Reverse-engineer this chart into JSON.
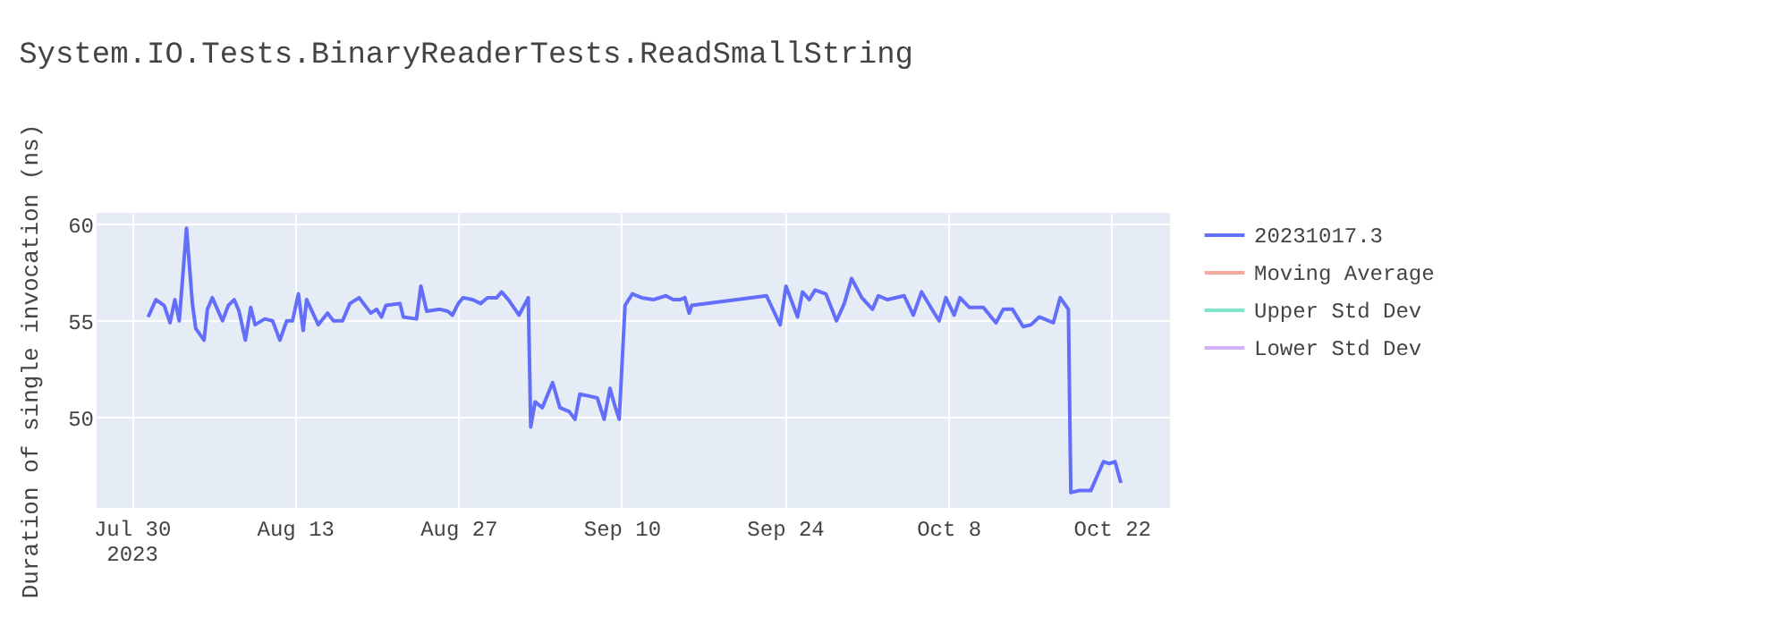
{
  "chart_data": {
    "type": "line",
    "title": "System.IO.Tests.BinaryReaderTests.ReadSmallString",
    "ylabel": "Duration of single invocation (ns)",
    "x": [
      "2023-07-31T10:00",
      "2023-08-01T02:00",
      "2023-08-01T19:00",
      "2023-08-02T07:00",
      "2023-08-02T17:00",
      "2023-08-03T02:00",
      "2023-08-03T17:00",
      "2023-08-04T05:00",
      "2023-08-04T12:00",
      "2023-08-05T05:00",
      "2023-08-05T12:00",
      "2023-08-05T22:00",
      "2023-08-06T19:00",
      "2023-08-07T07:00",
      "2023-08-07T19:00",
      "2023-08-08T05:00",
      "2023-08-08T18:00",
      "2023-08-09T05:00",
      "2023-08-09T14:00",
      "2023-08-10T10:00",
      "2023-08-11T02:00",
      "2023-08-11T17:00",
      "2023-08-12T07:00",
      "2023-08-12T19:00",
      "2023-08-13T07:00",
      "2023-08-13T17:00",
      "2023-08-14T00:00",
      "2023-08-15T00:00",
      "2023-08-15T19:00",
      "2023-08-16T07:00",
      "2023-08-17T02:00",
      "2023-08-17T17:00",
      "2023-08-18T12:00",
      "2023-08-19T12:00",
      "2023-08-20T00:00",
      "2023-08-20T10:00",
      "2023-08-20T19:00",
      "2023-08-22T00:00",
      "2023-08-22T07:00",
      "2023-08-23T10:00",
      "2023-08-23T19:00",
      "2023-08-24T07:00",
      "2023-08-25T10:00",
      "2023-08-26T02:00",
      "2023-08-26T12:00",
      "2023-08-27T00:00",
      "2023-08-27T10:00",
      "2023-08-28T05:00",
      "2023-08-28T22:00",
      "2023-08-29T12:00",
      "2023-08-30T07:00",
      "2023-08-30T17:00",
      "2023-08-31T07:00",
      "2023-09-01T05:00",
      "2023-09-02T00:00",
      "2023-09-02T05:00",
      "2023-09-02T14:00",
      "2023-09-03T05:00",
      "2023-09-04T02:00",
      "2023-09-04T17:00",
      "2023-09-05T12:00",
      "2023-09-06T00:00",
      "2023-09-06T10:00",
      "2023-09-07T05:00",
      "2023-09-07T22:00",
      "2023-09-08T12:00",
      "2023-09-09T00:00",
      "2023-09-09T10:00",
      "2023-09-09T19:00",
      "2023-09-10T07:00",
      "2023-09-10T22:00",
      "2023-09-11T17:00",
      "2023-09-12T17:00",
      "2023-09-13T19:00",
      "2023-09-14T10:00",
      "2023-09-15T00:00",
      "2023-09-15T10:00",
      "2023-09-15T19:00",
      "2023-09-16T00:00",
      "2023-09-22T10:00",
      "2023-09-23T14:00",
      "2023-09-24T02:00",
      "2023-09-25T02:00",
      "2023-09-25T12:00",
      "2023-09-26T02:00",
      "2023-09-26T14:00",
      "2023-09-27T12:00",
      "2023-09-28T10:00",
      "2023-09-29T02:00",
      "2023-09-29T17:00",
      "2023-09-30T14:00",
      "2023-10-01T12:00",
      "2023-10-02T00:00",
      "2023-10-02T19:00",
      "2023-10-04T05:00",
      "2023-10-05T00:00",
      "2023-10-05T17:00",
      "2023-10-06T12:00",
      "2023-10-07T05:00",
      "2023-10-07T19:00",
      "2023-10-08T12:00",
      "2023-10-09T00:00",
      "2023-10-09T19:00",
      "2023-10-11T00:00",
      "2023-10-12T02:00",
      "2023-10-12T17:00",
      "2023-10-13T12:00",
      "2023-10-14T10:00",
      "2023-10-15T02:00",
      "2023-10-15T19:00",
      "2023-10-17T00:00",
      "2023-10-17T14:00",
      "2023-10-18T07:00",
      "2023-10-18T12:00",
      "2023-10-19T05:00",
      "2023-10-20T05:00",
      "2023-10-21T07:00",
      "2023-10-21T19:00",
      "2023-10-22T07:00",
      "2023-10-22T19:00"
    ],
    "series": [
      {
        "name": "20231017.3",
        "color": "#636efa",
        "values": [
          55.2,
          56.1,
          55.8,
          54.9,
          56.1,
          55.0,
          59.8,
          55.9,
          54.6,
          54.0,
          55.6,
          56.2,
          55.0,
          55.8,
          56.1,
          55.5,
          54.0,
          55.7,
          54.8,
          55.1,
          55.0,
          54.0,
          55.0,
          55.0,
          56.4,
          54.5,
          56.1,
          54.8,
          55.4,
          55.0,
          55.0,
          55.9,
          56.2,
          55.4,
          55.6,
          55.2,
          55.8,
          55.9,
          55.2,
          55.1,
          56.8,
          55.5,
          55.6,
          55.5,
          55.3,
          55.9,
          56.2,
          56.1,
          55.9,
          56.2,
          56.2,
          56.5,
          56.1,
          55.3,
          56.2,
          49.5,
          50.8,
          50.5,
          51.8,
          50.5,
          50.3,
          49.9,
          51.2,
          51.1,
          51.0,
          49.9,
          51.5,
          50.6,
          49.9,
          55.8,
          56.4,
          56.2,
          56.1,
          56.3,
          56.1,
          56.1,
          56.2,
          55.4,
          55.8,
          56.3,
          54.8,
          56.8,
          55.2,
          56.5,
          56.1,
          56.6,
          56.4,
          55.0,
          55.9,
          57.2,
          56.2,
          55.6,
          56.3,
          56.1,
          56.3,
          55.3,
          56.5,
          55.7,
          55.0,
          56.2,
          55.3,
          56.2,
          55.7,
          55.7,
          54.9,
          55.6,
          55.6,
          54.7,
          54.8,
          55.2,
          54.9,
          56.2,
          55.6,
          46.1,
          46.2,
          46.2,
          47.7,
          47.6,
          47.7,
          46.6
        ]
      },
      {
        "name": "Moving Average",
        "color": "#f6aa9d",
        "values": [
          null,
          null,
          null,
          null,
          null,
          null,
          null,
          null,
          null,
          null,
          null,
          null,
          null,
          null,
          null,
          null,
          null,
          null,
          null,
          null,
          null,
          null,
          null,
          null,
          null,
          null,
          null,
          null,
          null,
          null,
          null,
          null,
          null,
          null,
          null,
          null,
          null,
          null,
          null,
          null,
          null,
          null,
          null,
          null,
          null,
          null,
          null,
          null,
          null,
          null,
          null,
          null,
          null,
          null,
          null,
          null,
          null,
          null,
          null,
          null,
          null,
          null,
          null,
          null,
          null,
          null,
          null,
          null,
          null,
          null,
          null,
          null,
          null,
          null,
          null,
          null,
          null,
          null,
          null,
          null,
          null,
          null,
          null,
          null,
          null,
          null,
          null,
          null,
          null,
          null,
          null,
          null,
          null,
          null,
          null,
          null,
          null,
          null,
          null,
          null,
          null,
          null,
          null,
          null,
          null,
          null,
          null,
          null,
          null,
          null,
          null,
          null,
          null,
          null,
          null,
          null,
          null,
          null,
          null,
          null
        ]
      },
      {
        "name": "Upper Std Dev",
        "color": "#80e6cb",
        "values": [
          null,
          null,
          null,
          null,
          null,
          null,
          null,
          null,
          null,
          null,
          null,
          null,
          null,
          null,
          null,
          null,
          null,
          null,
          null,
          null,
          null,
          null,
          null,
          null,
          null,
          null,
          null,
          null,
          null,
          null,
          null,
          null,
          null,
          null,
          null,
          null,
          null,
          null,
          null,
          null,
          null,
          null,
          null,
          null,
          null,
          null,
          null,
          null,
          null,
          null,
          null,
          null,
          null,
          null,
          null,
          null,
          null,
          null,
          null,
          null,
          null,
          null,
          null,
          null,
          null,
          null,
          null,
          null,
          null,
          null,
          null,
          null,
          null,
          null,
          null,
          null,
          null,
          null,
          null,
          null,
          null,
          null,
          null,
          null,
          null,
          null,
          null,
          null,
          null,
          null,
          null,
          null,
          null,
          null,
          null,
          null,
          null,
          null,
          null,
          null,
          null,
          null,
          null,
          null,
          null,
          null,
          null,
          null,
          null,
          null,
          null,
          null,
          null,
          null,
          null,
          null,
          null,
          null,
          null,
          null
        ]
      },
      {
        "name": "Lower Std Dev",
        "color": "#d5b1fd",
        "values": [
          null,
          null,
          null,
          null,
          null,
          null,
          null,
          null,
          null,
          null,
          null,
          null,
          null,
          null,
          null,
          null,
          null,
          null,
          null,
          null,
          null,
          null,
          null,
          null,
          null,
          null,
          null,
          null,
          null,
          null,
          null,
          null,
          null,
          null,
          null,
          null,
          null,
          null,
          null,
          null,
          null,
          null,
          null,
          null,
          null,
          null,
          null,
          null,
          null,
          null,
          null,
          null,
          null,
          null,
          null,
          null,
          null,
          null,
          null,
          null,
          null,
          null,
          null,
          null,
          null,
          null,
          null,
          null,
          null,
          null,
          null,
          null,
          null,
          null,
          null,
          null,
          null,
          null,
          null,
          null,
          null,
          null,
          null,
          null,
          null,
          null,
          null,
          null,
          null,
          null,
          null,
          null,
          null,
          null,
          null,
          null,
          null,
          null,
          null,
          null,
          null,
          null,
          null,
          null,
          null,
          null,
          null,
          null,
          null,
          null,
          null,
          null,
          null,
          null,
          null,
          null,
          null,
          null,
          null,
          null
        ]
      }
    ],
    "xlim": [
      "2023-07-27",
      "2023-10-27"
    ],
    "xticks": [
      {
        "value": "2023-07-30",
        "label": "Jul 30\n2023"
      },
      {
        "value": "2023-08-13",
        "label": "Aug 13"
      },
      {
        "value": "2023-08-27",
        "label": "Aug 27"
      },
      {
        "value": "2023-09-10",
        "label": "Sep 10"
      },
      {
        "value": "2023-09-24",
        "label": "Sep 24"
      },
      {
        "value": "2023-10-08",
        "label": "Oct 8"
      },
      {
        "value": "2023-10-22",
        "label": "Oct 22"
      }
    ],
    "ylim": [
      45.3,
      60.6
    ],
    "yticks": [
      50,
      55,
      60
    ],
    "grid": true,
    "legend": "right",
    "marker": "none",
    "line_style": "solid"
  }
}
